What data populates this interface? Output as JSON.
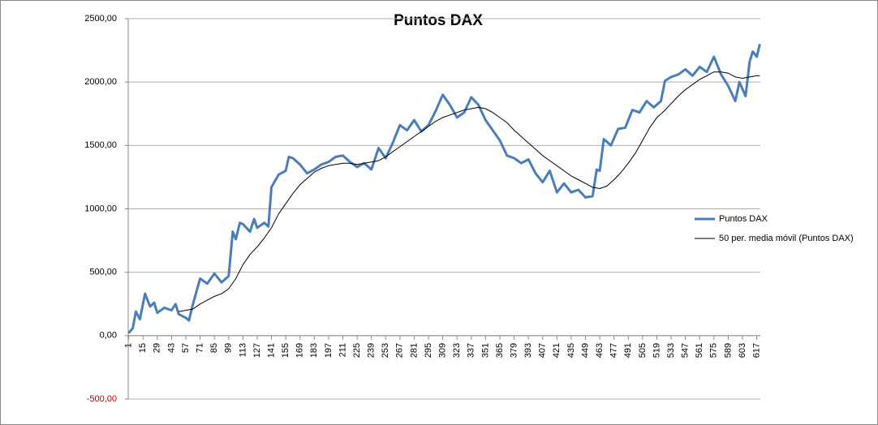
{
  "chart_data": {
    "type": "line",
    "title": "Puntos DAX",
    "xlim": [
      0.5,
      620.5
    ],
    "xticks": [
      1,
      15,
      29,
      43,
      57,
      71,
      85,
      99,
      113,
      127,
      141,
      155,
      169,
      183,
      197,
      211,
      225,
      239,
      253,
      267,
      281,
      295,
      309,
      323,
      337,
      351,
      365,
      379,
      393,
      407,
      421,
      435,
      449,
      463,
      477,
      491,
      505,
      519,
      533,
      547,
      561,
      575,
      589,
      603,
      617
    ],
    "ylim": [
      -500,
      2500
    ],
    "yticks": [
      {
        "value": -500,
        "label": "-500,00"
      },
      {
        "value": 0,
        "label": "0,00"
      },
      {
        "value": 500,
        "label": "500,00"
      },
      {
        "value": 1000,
        "label": "1000,00"
      },
      {
        "value": 1500,
        "label": "1500,00"
      },
      {
        "value": 2000,
        "label": "2000,00"
      },
      {
        "value": 2500,
        "label": "2500,00"
      }
    ],
    "grid": true,
    "legend": "right",
    "series": [
      {
        "name": "Puntos DAX",
        "color": "#4a7ebb",
        "width": 3,
        "x": [
          1,
          5,
          8,
          12,
          17,
          22,
          26,
          29,
          36,
          43,
          47,
          50,
          57,
          60,
          64,
          71,
          78,
          85,
          92,
          99,
          103,
          106,
          110,
          113,
          120,
          124,
          127,
          134,
          138,
          141,
          148,
          155,
          158,
          162,
          169,
          176,
          183,
          190,
          197,
          204,
          211,
          218,
          225,
          232,
          239,
          246,
          253,
          260,
          267,
          274,
          281,
          288,
          295,
          302,
          309,
          316,
          323,
          330,
          337,
          344,
          351,
          358,
          365,
          372,
          379,
          386,
          393,
          400,
          407,
          414,
          421,
          428,
          435,
          442,
          449,
          456,
          460,
          463,
          467,
          474,
          481,
          488,
          495,
          502,
          509,
          516,
          523,
          527,
          533,
          540,
          547,
          554,
          561,
          568,
          575,
          582,
          589,
          596,
          600,
          606,
          610,
          613,
          617,
          620
        ],
        "values": [
          20,
          60,
          190,
          130,
          330,
          230,
          260,
          180,
          220,
          200,
          250,
          170,
          140,
          120,
          250,
          450,
          410,
          490,
          420,
          470,
          820,
          760,
          890,
          880,
          820,
          920,
          850,
          890,
          860,
          1170,
          1270,
          1300,
          1410,
          1400,
          1350,
          1280,
          1310,
          1350,
          1370,
          1410,
          1420,
          1370,
          1330,
          1360,
          1310,
          1480,
          1400,
          1520,
          1660,
          1620,
          1700,
          1610,
          1660,
          1770,
          1900,
          1820,
          1720,
          1760,
          1880,
          1820,
          1700,
          1620,
          1540,
          1420,
          1400,
          1360,
          1390,
          1280,
          1210,
          1300,
          1130,
          1200,
          1130,
          1150,
          1090,
          1100,
          1310,
          1300,
          1550,
          1500,
          1630,
          1640,
          1780,
          1760,
          1850,
          1800,
          1850,
          2010,
          2040,
          2060,
          2100,
          2050,
          2120,
          2080,
          2200,
          2060,
          1970,
          1850,
          2000,
          1890,
          2160,
          2240,
          2200,
          2300
        ]
      },
      {
        "name": "50 per. media móvil (Puntos DAX)",
        "color": "#000000",
        "width": 1,
        "x": [
          50,
          57,
          64,
          71,
          78,
          85,
          92,
          99,
          106,
          113,
          120,
          127,
          134,
          141,
          148,
          155,
          162,
          169,
          176,
          183,
          190,
          197,
          204,
          211,
          218,
          225,
          232,
          239,
          246,
          253,
          260,
          267,
          274,
          281,
          288,
          295,
          302,
          309,
          316,
          323,
          330,
          337,
          344,
          351,
          358,
          365,
          372,
          379,
          386,
          393,
          400,
          407,
          414,
          421,
          428,
          435,
          442,
          449,
          456,
          463,
          470,
          477,
          484,
          491,
          498,
          505,
          512,
          519,
          526,
          533,
          540,
          547,
          554,
          561,
          568,
          575,
          582,
          589,
          596,
          603,
          610,
          617,
          620
        ],
        "values": [
          190,
          200,
          210,
          250,
          280,
          310,
          330,
          370,
          450,
          560,
          640,
          700,
          770,
          850,
          960,
          1040,
          1120,
          1190,
          1240,
          1290,
          1320,
          1340,
          1350,
          1360,
          1360,
          1350,
          1360,
          1370,
          1380,
          1410,
          1450,
          1490,
          1530,
          1570,
          1610,
          1650,
          1690,
          1720,
          1740,
          1760,
          1780,
          1790,
          1800,
          1790,
          1760,
          1720,
          1680,
          1620,
          1570,
          1520,
          1470,
          1420,
          1380,
          1340,
          1300,
          1260,
          1230,
          1200,
          1170,
          1160,
          1180,
          1230,
          1290,
          1360,
          1440,
          1540,
          1640,
          1720,
          1770,
          1830,
          1890,
          1940,
          1980,
          2020,
          2050,
          2080,
          2080,
          2070,
          2040,
          2030,
          2040,
          2050,
          2050
        ]
      }
    ]
  }
}
